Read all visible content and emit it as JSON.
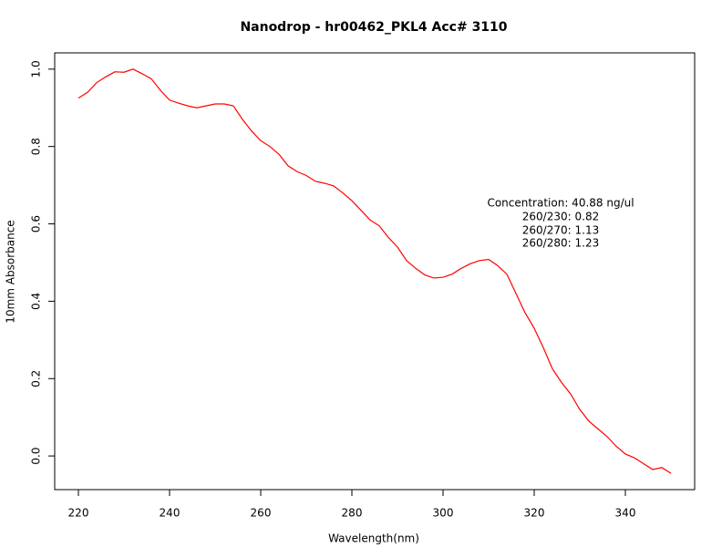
{
  "chart_data": {
    "type": "line",
    "title": "Nanodrop - hr00462_PKL4 Acc# 3110",
    "x_label": "Wavelength(nm)",
    "y_label": "10mm Absorbance",
    "annotations": [
      "Concentration: 40.88 ng/ul",
      "260/230: 0.82",
      "260/270: 1.13",
      "260/280: 1.23"
    ],
    "x": [
      220,
      222,
      224,
      226,
      228,
      230,
      232,
      234,
      236,
      238,
      240,
      242,
      244,
      246,
      248,
      250,
      252,
      254,
      256,
      258,
      260,
      262,
      264,
      266,
      268,
      270,
      272,
      274,
      276,
      278,
      280,
      282,
      284,
      286,
      288,
      290,
      292,
      294,
      296,
      298,
      300,
      302,
      304,
      306,
      308,
      310,
      312,
      314,
      316,
      318,
      320,
      322,
      324,
      326,
      328,
      330,
      332,
      334,
      336,
      338,
      340,
      342,
      344,
      346,
      348,
      350
    ],
    "series": [
      {
        "name": "absorbance",
        "color": "#ff0000",
        "values": [
          0.925,
          0.94,
          0.965,
          0.98,
          0.993,
          0.992,
          1.0,
          0.988,
          0.975,
          0.945,
          0.92,
          0.912,
          0.905,
          0.9,
          0.905,
          0.91,
          0.91,
          0.905,
          0.87,
          0.84,
          0.815,
          0.8,
          0.78,
          0.75,
          0.735,
          0.725,
          0.71,
          0.705,
          0.698,
          0.68,
          0.66,
          0.635,
          0.61,
          0.595,
          0.565,
          0.54,
          0.505,
          0.485,
          0.468,
          0.46,
          0.462,
          0.47,
          0.485,
          0.497,
          0.505,
          0.508,
          0.492,
          0.47,
          0.42,
          0.37,
          0.33,
          0.28,
          0.225,
          0.19,
          0.16,
          0.12,
          0.09,
          0.07,
          0.05,
          0.025,
          0.005,
          -0.005,
          -0.02,
          -0.035,
          -0.03,
          -0.045
        ]
      }
    ],
    "xlim": [
      214.8,
      355.2
    ],
    "ylim": [
      -0.087,
      1.042
    ],
    "xticks": [
      220,
      240,
      260,
      280,
      300,
      320,
      340
    ],
    "yticks": [
      {
        "value": 0,
        "label": "0.0"
      },
      0.2,
      0.4,
      0.6,
      0.8,
      {
        "value": 1,
        "label": "1.0"
      }
    ],
    "grid": false
  }
}
